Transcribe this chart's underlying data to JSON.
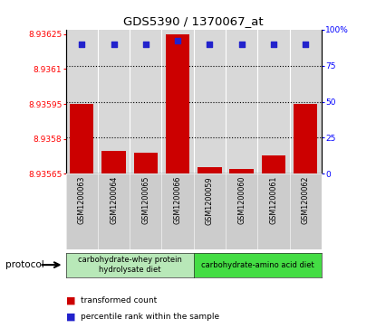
{
  "title": "GDS5390 / 1370067_at",
  "samples": [
    "GSM1200063",
    "GSM1200064",
    "GSM1200065",
    "GSM1200066",
    "GSM1200059",
    "GSM1200060",
    "GSM1200061",
    "GSM1200062"
  ],
  "bar_values": [
    8.93595,
    8.93575,
    8.93574,
    8.93625,
    8.93568,
    8.93567,
    8.93573,
    8.93595
  ],
  "percentile_values": [
    90,
    90,
    90,
    92,
    90,
    90,
    90,
    90
  ],
  "ymin": 8.93565,
  "ymax": 8.93627,
  "y_ticks_left": [
    8.93565,
    8.9358,
    8.93595,
    8.9361,
    8.93625
  ],
  "y_tick_labels_left": [
    "8.93565",
    "8.9358",
    "8.93595",
    "8.9361",
    "8.93625"
  ],
  "y_ticks_right_vals": [
    0,
    25,
    50,
    75,
    100
  ],
  "y_ticks_right_labels": [
    "0",
    "25",
    "50",
    "75",
    "100%"
  ],
  "bar_color": "#cc0000",
  "dot_color": "#2222cc",
  "bg_color_plot": "#d8d8d8",
  "group1_label": "carbohydrate-whey protein\nhydrolysate diet",
  "group2_label": "carbohydrate-amino acid diet",
  "group1_color": "#b8e8b8",
  "group2_color": "#44dd44",
  "group1_count": 4,
  "group2_count": 4,
  "legend_bar_label": "transformed count",
  "legend_dot_label": "percentile rank within the sample",
  "protocol_label": "protocol"
}
